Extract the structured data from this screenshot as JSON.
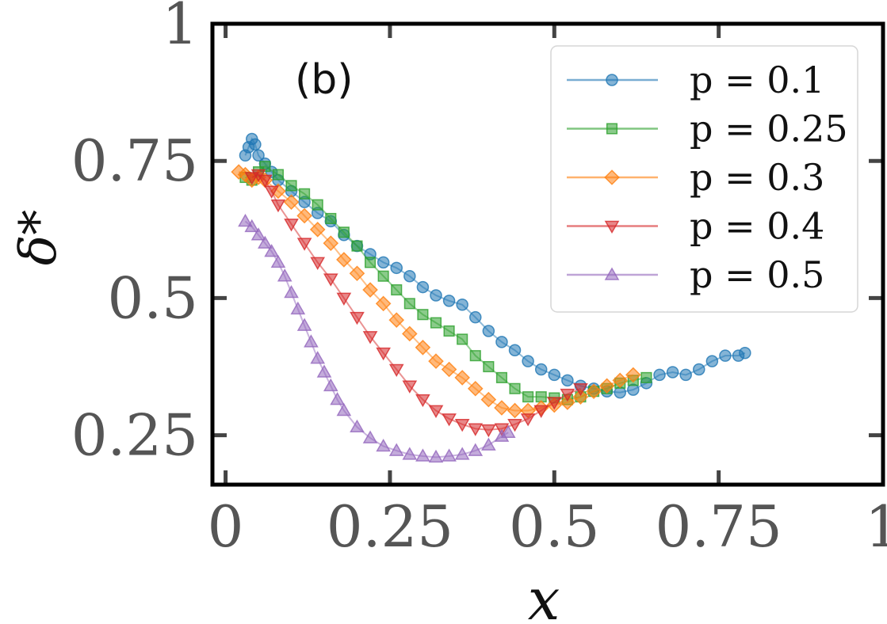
{
  "chart_data": {
    "type": "scatter",
    "panel_label": "(b)",
    "xlabel": "x",
    "ylabel": "δ*",
    "xlim": [
      -0.02,
      1.0
    ],
    "ylim": [
      0.16,
      1.0
    ],
    "xticks": [
      0,
      0.25,
      0.5,
      0.75,
      1
    ],
    "xtick_labels": [
      "0",
      "0.25",
      "0.5",
      "0.75",
      "1"
    ],
    "yticks": [
      0.25,
      0.5,
      0.75,
      1
    ],
    "ytick_labels": [
      "0.25",
      "0.5",
      "0.75",
      "1"
    ],
    "grid": false,
    "legend_position": "top-right",
    "series": [
      {
        "name": "p = 0.1",
        "color": "#1f77b4",
        "marker": "circle",
        "points": [
          [
            0.03,
            0.76
          ],
          [
            0.035,
            0.775
          ],
          [
            0.04,
            0.79
          ],
          [
            0.045,
            0.78
          ],
          [
            0.05,
            0.76
          ],
          [
            0.06,
            0.745
          ],
          [
            0.07,
            0.73
          ],
          [
            0.08,
            0.715
          ],
          [
            0.1,
            0.695
          ],
          [
            0.12,
            0.675
          ],
          [
            0.14,
            0.655
          ],
          [
            0.16,
            0.64
          ],
          [
            0.18,
            0.615
          ],
          [
            0.2,
            0.595
          ],
          [
            0.22,
            0.58
          ],
          [
            0.24,
            0.565
          ],
          [
            0.26,
            0.555
          ],
          [
            0.28,
            0.54
          ],
          [
            0.3,
            0.52
          ],
          [
            0.32,
            0.505
          ],
          [
            0.34,
            0.495
          ],
          [
            0.36,
            0.488
          ],
          [
            0.38,
            0.465
          ],
          [
            0.4,
            0.44
          ],
          [
            0.42,
            0.42
          ],
          [
            0.44,
            0.405
          ],
          [
            0.46,
            0.385
          ],
          [
            0.48,
            0.37
          ],
          [
            0.5,
            0.36
          ],
          [
            0.52,
            0.35
          ],
          [
            0.54,
            0.34
          ],
          [
            0.56,
            0.335
          ],
          [
            0.58,
            0.33
          ],
          [
            0.6,
            0.328
          ],
          [
            0.62,
            0.333
          ],
          [
            0.64,
            0.345
          ],
          [
            0.66,
            0.36
          ],
          [
            0.68,
            0.365
          ],
          [
            0.7,
            0.36
          ],
          [
            0.72,
            0.37
          ],
          [
            0.74,
            0.385
          ],
          [
            0.76,
            0.395
          ],
          [
            0.78,
            0.395
          ],
          [
            0.79,
            0.4
          ]
        ]
      },
      {
        "name": "p = 0.25",
        "color": "#2ca02c",
        "marker": "square",
        "points": [
          [
            0.03,
            0.72
          ],
          [
            0.04,
            0.715
          ],
          [
            0.05,
            0.73
          ],
          [
            0.06,
            0.74
          ],
          [
            0.08,
            0.725
          ],
          [
            0.1,
            0.705
          ],
          [
            0.12,
            0.69
          ],
          [
            0.14,
            0.67
          ],
          [
            0.16,
            0.645
          ],
          [
            0.18,
            0.62
          ],
          [
            0.2,
            0.595
          ],
          [
            0.22,
            0.565
          ],
          [
            0.24,
            0.54
          ],
          [
            0.26,
            0.515
          ],
          [
            0.28,
            0.49
          ],
          [
            0.3,
            0.47
          ],
          [
            0.32,
            0.455
          ],
          [
            0.34,
            0.44
          ],
          [
            0.36,
            0.425
          ],
          [
            0.38,
            0.395
          ],
          [
            0.4,
            0.375
          ],
          [
            0.42,
            0.355
          ],
          [
            0.44,
            0.335
          ],
          [
            0.46,
            0.32
          ],
          [
            0.48,
            0.32
          ],
          [
            0.5,
            0.318
          ],
          [
            0.52,
            0.315
          ],
          [
            0.54,
            0.32
          ],
          [
            0.56,
            0.33
          ],
          [
            0.58,
            0.335
          ],
          [
            0.6,
            0.345
          ],
          [
            0.62,
            0.35
          ],
          [
            0.64,
            0.355
          ]
        ]
      },
      {
        "name": "p = 0.3",
        "color": "#ff7f0e",
        "marker": "diamond",
        "points": [
          [
            0.02,
            0.73
          ],
          [
            0.03,
            0.725
          ],
          [
            0.04,
            0.715
          ],
          [
            0.05,
            0.72
          ],
          [
            0.06,
            0.715
          ],
          [
            0.08,
            0.695
          ],
          [
            0.1,
            0.675
          ],
          [
            0.12,
            0.65
          ],
          [
            0.14,
            0.625
          ],
          [
            0.16,
            0.6
          ],
          [
            0.18,
            0.57
          ],
          [
            0.2,
            0.545
          ],
          [
            0.22,
            0.515
          ],
          [
            0.24,
            0.49
          ],
          [
            0.26,
            0.46
          ],
          [
            0.28,
            0.435
          ],
          [
            0.3,
            0.41
          ],
          [
            0.32,
            0.385
          ],
          [
            0.34,
            0.37
          ],
          [
            0.36,
            0.355
          ],
          [
            0.38,
            0.335
          ],
          [
            0.4,
            0.315
          ],
          [
            0.42,
            0.3
          ],
          [
            0.44,
            0.295
          ],
          [
            0.46,
            0.295
          ],
          [
            0.48,
            0.3
          ],
          [
            0.5,
            0.305
          ],
          [
            0.52,
            0.31
          ],
          [
            0.54,
            0.32
          ],
          [
            0.56,
            0.33
          ],
          [
            0.58,
            0.34
          ],
          [
            0.6,
            0.35
          ],
          [
            0.62,
            0.36
          ]
        ]
      },
      {
        "name": "p = 0.4",
        "color": "#d62728",
        "marker": "triangle-down",
        "points": [
          [
            0.04,
            0.72
          ],
          [
            0.05,
            0.725
          ],
          [
            0.06,
            0.715
          ],
          [
            0.07,
            0.695
          ],
          [
            0.08,
            0.67
          ],
          [
            0.1,
            0.635
          ],
          [
            0.12,
            0.6
          ],
          [
            0.14,
            0.565
          ],
          [
            0.16,
            0.535
          ],
          [
            0.18,
            0.5
          ],
          [
            0.2,
            0.465
          ],
          [
            0.22,
            0.43
          ],
          [
            0.24,
            0.4
          ],
          [
            0.26,
            0.37
          ],
          [
            0.28,
            0.34
          ],
          [
            0.3,
            0.315
          ],
          [
            0.32,
            0.295
          ],
          [
            0.34,
            0.28
          ],
          [
            0.36,
            0.27
          ],
          [
            0.38,
            0.262
          ],
          [
            0.4,
            0.26
          ],
          [
            0.42,
            0.262
          ],
          [
            0.44,
            0.27
          ],
          [
            0.46,
            0.28
          ],
          [
            0.48,
            0.295
          ],
          [
            0.5,
            0.31
          ],
          [
            0.52,
            0.325
          ],
          [
            0.54,
            0.335
          ]
        ]
      },
      {
        "name": "p = 0.5",
        "color": "#9467bd",
        "marker": "triangle-up",
        "points": [
          [
            0.03,
            0.64
          ],
          [
            0.04,
            0.63
          ],
          [
            0.05,
            0.615
          ],
          [
            0.06,
            0.6
          ],
          [
            0.07,
            0.585
          ],
          [
            0.08,
            0.565
          ],
          [
            0.09,
            0.54
          ],
          [
            0.1,
            0.51
          ],
          [
            0.11,
            0.48
          ],
          [
            0.12,
            0.45
          ],
          [
            0.13,
            0.42
          ],
          [
            0.14,
            0.39
          ],
          [
            0.15,
            0.365
          ],
          [
            0.16,
            0.34
          ],
          [
            0.17,
            0.315
          ],
          [
            0.18,
            0.295
          ],
          [
            0.2,
            0.265
          ],
          [
            0.22,
            0.245
          ],
          [
            0.24,
            0.23
          ],
          [
            0.26,
            0.222
          ],
          [
            0.28,
            0.215
          ],
          [
            0.3,
            0.212
          ],
          [
            0.32,
            0.21
          ],
          [
            0.34,
            0.212
          ],
          [
            0.36,
            0.215
          ],
          [
            0.38,
            0.222
          ],
          [
            0.4,
            0.232
          ],
          [
            0.42,
            0.248
          ],
          [
            0.43,
            0.255
          ]
        ]
      }
    ]
  }
}
